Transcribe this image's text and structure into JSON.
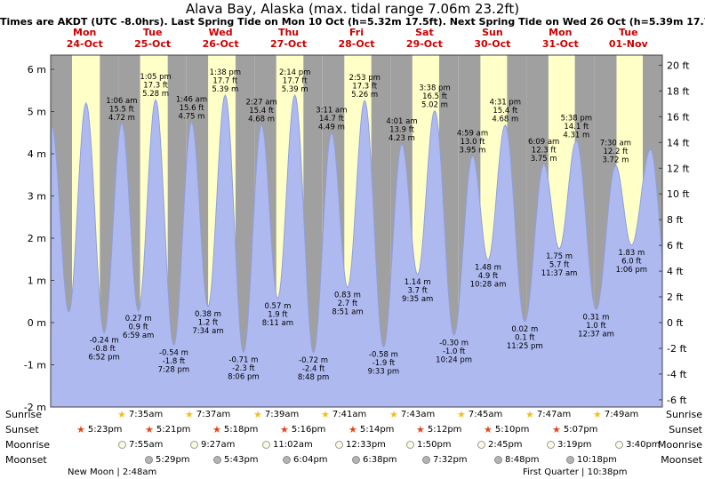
{
  "colors": {
    "header_red": "#cc0000",
    "day_band": "#ffffc8",
    "night_band": "#a0a0a0",
    "tide_fill": "#aeb9f0",
    "tide_edge": "#8fa0e0",
    "plot_border": "#444444",
    "axis_text": "#000000",
    "annotation_text": "#000000",
    "sunrise_star": "#f0c020",
    "sunset_star": "#e64517",
    "moonrise_bg": "#fcf9e4",
    "moonrise_border": "#9a9a9a",
    "moonset_bg": "#b4b4b4",
    "moonset_border": "#898989"
  },
  "chart_data": {
    "type": "area",
    "title": "Alava Bay, Alaska (max. tidal range 7.06m 23.2ft)",
    "subtitle": "Times are AKDT (UTC -8.0hrs). Last Spring Tide on Mon 10 Oct (h=5.32m 17.5ft). Next Spring Tide on Wed 26 Oct (h=5.39m 17.7ft)",
    "x_days": [
      {
        "dow": "Mon",
        "date": "24-Oct"
      },
      {
        "dow": "Tue",
        "date": "25-Oct"
      },
      {
        "dow": "Wed",
        "date": "26-Oct"
      },
      {
        "dow": "Thu",
        "date": "27-Oct"
      },
      {
        "dow": "Fri",
        "date": "28-Oct"
      },
      {
        "dow": "Sat",
        "date": "29-Oct"
      },
      {
        "dow": "Sun",
        "date": "30-Oct"
      },
      {
        "dow": "Mon",
        "date": "31-Oct"
      },
      {
        "dow": "Tue",
        "date": "01-Nov"
      }
    ],
    "left_ticks_m": [
      6,
      5,
      4,
      3,
      2,
      1,
      0,
      -1,
      -2
    ],
    "right_ticks_ft": [
      20,
      18,
      16,
      14,
      12,
      10,
      8,
      6,
      4,
      2,
      0,
      -2,
      -4,
      -6
    ],
    "left_unit": "m",
    "right_unit": "ft",
    "ylim_m": [
      -2,
      6.34
    ],
    "grid": false,
    "tide_events": [
      {
        "day": 0,
        "time": "12:20 am",
        "type": "high",
        "m": 4.65,
        "annotated": false
      },
      {
        "day": 0,
        "time": "6:25 am",
        "type": "low",
        "m": 0.25,
        "annotated": false
      },
      {
        "day": 0,
        "time": "12:30 pm",
        "type": "high",
        "m": 5.2,
        "annotated": false
      },
      {
        "day": 0,
        "time": "6:52 pm",
        "type": "low",
        "m": -0.24,
        "ft": -0.8,
        "annotated": true
      },
      {
        "day": 1,
        "time": "1:06 am",
        "type": "high",
        "m": 4.72,
        "ft": 15.5,
        "annotated": true
      },
      {
        "day": 1,
        "time": "6:59 am",
        "type": "low",
        "m": 0.27,
        "ft": 0.9,
        "annotated": true
      },
      {
        "day": 1,
        "time": "1:05 pm",
        "type": "high",
        "m": 5.28,
        "ft": 17.3,
        "annotated": true
      },
      {
        "day": 1,
        "time": "7:28 pm",
        "type": "low",
        "m": -0.54,
        "ft": -1.8,
        "annotated": true
      },
      {
        "day": 2,
        "time": "1:46 am",
        "type": "high",
        "m": 4.75,
        "ft": 15.6,
        "annotated": true
      },
      {
        "day": 2,
        "time": "7:34 am",
        "type": "low",
        "m": 0.38,
        "ft": 1.2,
        "annotated": true
      },
      {
        "day": 2,
        "time": "1:38 pm",
        "type": "high",
        "m": 5.39,
        "ft": 17.7,
        "annotated": true
      },
      {
        "day": 2,
        "time": "8:06 pm",
        "type": "low",
        "m": -0.71,
        "ft": -2.3,
        "annotated": true
      },
      {
        "day": 3,
        "time": "2:27 am",
        "type": "high",
        "m": 4.68,
        "ft": 15.4,
        "annotated": true
      },
      {
        "day": 3,
        "time": "8:11 am",
        "type": "low",
        "m": 0.57,
        "ft": 1.9,
        "annotated": true
      },
      {
        "day": 3,
        "time": "2:14 pm",
        "type": "high",
        "m": 5.39,
        "ft": 17.7,
        "annotated": true
      },
      {
        "day": 3,
        "time": "8:48 pm",
        "type": "low",
        "m": -0.72,
        "ft": -2.4,
        "annotated": true
      },
      {
        "day": 4,
        "time": "3:11 am",
        "type": "high",
        "m": 4.49,
        "ft": 14.7,
        "annotated": true
      },
      {
        "day": 4,
        "time": "8:51 am",
        "type": "low",
        "m": 0.83,
        "ft": 2.7,
        "annotated": true
      },
      {
        "day": 4,
        "time": "2:53 pm",
        "type": "high",
        "m": 5.26,
        "ft": 17.3,
        "annotated": true
      },
      {
        "day": 4,
        "time": "9:33 pm",
        "type": "low",
        "m": -0.58,
        "ft": -1.9,
        "annotated": true
      },
      {
        "day": 5,
        "time": "4:01 am",
        "type": "high",
        "m": 4.23,
        "ft": 13.9,
        "annotated": true
      },
      {
        "day": 5,
        "time": "9:35 am",
        "type": "low",
        "m": 1.14,
        "ft": 3.7,
        "annotated": true
      },
      {
        "day": 5,
        "time": "3:38 pm",
        "type": "high",
        "m": 5.02,
        "ft": 16.5,
        "annotated": true
      },
      {
        "day": 5,
        "time": "10:24 pm",
        "type": "low",
        "m": -0.3,
        "ft": -1.0,
        "annotated": true
      },
      {
        "day": 6,
        "time": "4:59 am",
        "type": "high",
        "m": 3.95,
        "ft": 13.0,
        "annotated": true
      },
      {
        "day": 6,
        "time": "10:28 am",
        "type": "low",
        "m": 1.48,
        "ft": 4.9,
        "annotated": true
      },
      {
        "day": 6,
        "time": "4:31 pm",
        "type": "high",
        "m": 4.68,
        "ft": 15.4,
        "annotated": true
      },
      {
        "day": 6,
        "time": "11:25 pm",
        "type": "low",
        "m": 0.02,
        "ft": 0.1,
        "annotated": true
      },
      {
        "day": 7,
        "time": "6:09 am",
        "type": "high",
        "m": 3.75,
        "ft": 12.3,
        "annotated": true
      },
      {
        "day": 7,
        "time": "11:37 am",
        "type": "low",
        "m": 1.75,
        "ft": 5.7,
        "annotated": true
      },
      {
        "day": 7,
        "time": "5:38 pm",
        "type": "high",
        "m": 4.31,
        "ft": 14.1,
        "annotated": true
      },
      {
        "day": 8,
        "time": "12:37 am",
        "type": "low",
        "m": 0.31,
        "ft": 1.0,
        "annotated": true
      },
      {
        "day": 8,
        "time": "7:30 am",
        "type": "high",
        "m": 3.72,
        "ft": 12.2,
        "annotated": true
      },
      {
        "day": 8,
        "time": "1:06 pm",
        "type": "low",
        "m": 1.83,
        "ft": 6.0,
        "annotated": true
      },
      {
        "day": 8,
        "time": "7:50 pm",
        "type": "high",
        "m": 4.1,
        "annotated": false
      },
      {
        "day": 9,
        "time": "2:10 am",
        "type": "low",
        "m": 0.6,
        "annotated": false
      }
    ],
    "astro": {
      "rows": [
        {
          "key": "sunrise",
          "label": "Sunrise",
          "entries": [
            {
              "day": 1,
              "time": "7:35am"
            },
            {
              "day": 2,
              "time": "7:37am"
            },
            {
              "day": 3,
              "time": "7:39am"
            },
            {
              "day": 4,
              "time": "7:41am"
            },
            {
              "day": 5,
              "time": "7:43am"
            },
            {
              "day": 6,
              "time": "7:45am"
            },
            {
              "day": 7,
              "time": "7:47am"
            },
            {
              "day": 8,
              "time": "7:49am"
            }
          ]
        },
        {
          "key": "sunset",
          "label": "Sunset",
          "entries": [
            {
              "day": 0,
              "time": "5:23pm"
            },
            {
              "day": 1,
              "time": "5:21pm"
            },
            {
              "day": 2,
              "time": "5:18pm"
            },
            {
              "day": 3,
              "time": "5:16pm"
            },
            {
              "day": 4,
              "time": "5:14pm"
            },
            {
              "day": 5,
              "time": "5:12pm"
            },
            {
              "day": 6,
              "time": "5:10pm"
            },
            {
              "day": 7,
              "time": "5:07pm"
            }
          ]
        },
        {
          "key": "moonrise",
          "label": "Moonrise",
          "entries": [
            {
              "day": 1,
              "time": "7:55am"
            },
            {
              "day": 2,
              "time": "9:27am"
            },
            {
              "day": 3,
              "time": "11:02am"
            },
            {
              "day": 4,
              "time": "12:33pm"
            },
            {
              "day": 5,
              "time": "1:50pm"
            },
            {
              "day": 6,
              "time": "2:45pm"
            },
            {
              "day": 7,
              "time": "3:19pm"
            },
            {
              "day": 8,
              "time": "3:40pm"
            }
          ]
        },
        {
          "key": "moonset",
          "label": "Moonset",
          "entries": [
            {
              "day": 1,
              "time": "5:29pm"
            },
            {
              "day": 2,
              "time": "5:43pm"
            },
            {
              "day": 3,
              "time": "6:04pm"
            },
            {
              "day": 4,
              "time": "6:38pm"
            },
            {
              "day": 5,
              "time": "7:32pm"
            },
            {
              "day": 6,
              "time": "8:48pm"
            },
            {
              "day": 7,
              "time": "10:18pm"
            }
          ]
        }
      ],
      "phases": {
        "left": "New Moon | 2:48am",
        "right": "First Quarter | 10:38pm"
      }
    }
  }
}
